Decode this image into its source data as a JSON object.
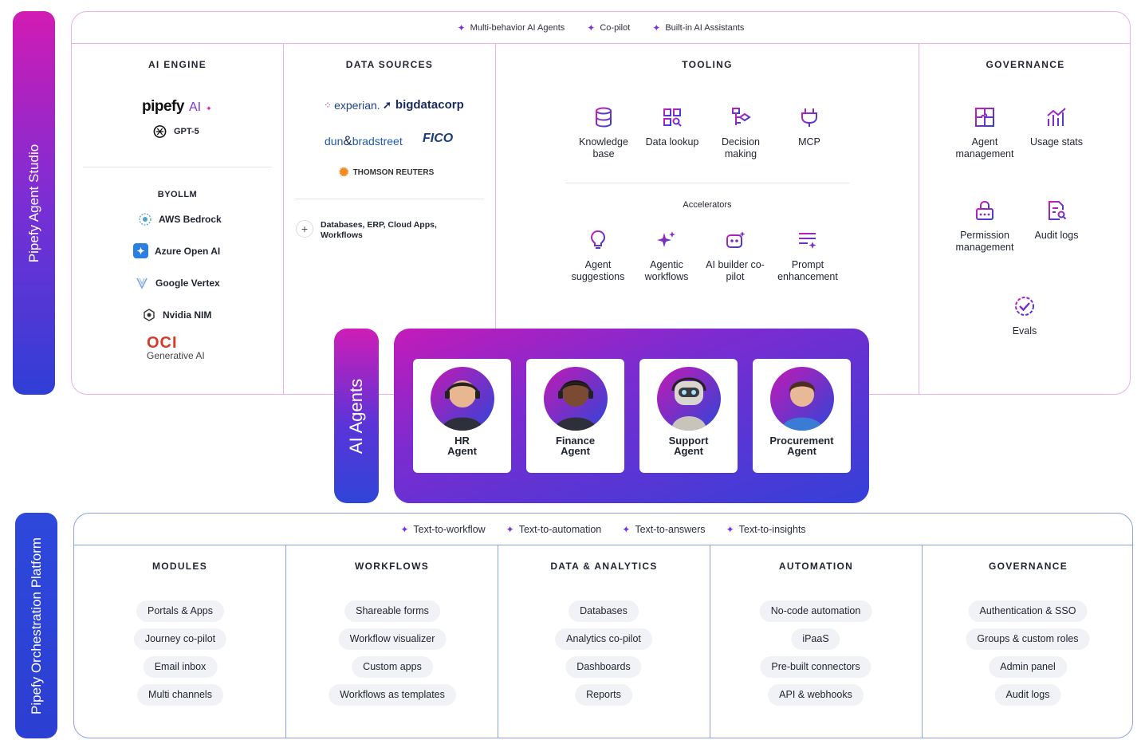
{
  "sidebars": {
    "studio": "Pipefy Agent Studio",
    "platform": "Pipefy Orchestration Platform"
  },
  "studio_top": [
    "Multi-behavior AI Agents",
    "Co-pilot",
    "Built-in AI Assistants"
  ],
  "ai_engine": {
    "title": "AI ENGINE",
    "pipefy_logo": "pipefy",
    "pipefy_ai": "AI",
    "gpt": "GPT-5",
    "byollm_title": "BYOLLM",
    "llms": [
      "AWS Bedrock",
      "Azure Open AI",
      "Google Vertex",
      "Nvidia NIM"
    ],
    "oci_logo": "OCI",
    "oci_sub": "Generative AI"
  },
  "data_sources": {
    "title": "DATA SOURCES",
    "logos": [
      "experian.",
      "bigdatacorp",
      "dun",
      "&",
      "bradstreet",
      "FICO",
      "THOMSON REUTERS"
    ],
    "extra": "Databases, ERP, Cloud Apps, Workflows"
  },
  "tooling": {
    "title": "TOOLING",
    "tools": [
      {
        "label": "Knowledge base",
        "icon": "database-icon"
      },
      {
        "label": "Data lookup",
        "icon": "grid-search-icon"
      },
      {
        "label": "Decision making",
        "icon": "flow-icon"
      },
      {
        "label": "MCP",
        "icon": "plug-icon"
      }
    ],
    "accel_title": "Accelerators",
    "accelerators": [
      {
        "label": "Agent suggestions",
        "icon": "lightbulb-icon"
      },
      {
        "label": "Agentic workflows",
        "icon": "sparkles-icon"
      },
      {
        "label": "AI builder co-pilot",
        "icon": "robot-icon"
      },
      {
        "label": "Prompt enhancement",
        "icon": "list-sparkle-icon"
      }
    ]
  },
  "governance_studio": {
    "title": "GOVERNANCE",
    "items": [
      {
        "label": "Agent management",
        "icon": "puzzle-icon"
      },
      {
        "label": "Usage stats",
        "icon": "chart-icon"
      },
      {
        "label": "Permission management",
        "icon": "lock-icon"
      },
      {
        "label": "Audit logs",
        "icon": "doc-search-icon"
      },
      {
        "label": "Evals",
        "icon": "check-circle-icon"
      }
    ]
  },
  "ai_agents": {
    "title": "AI Agents",
    "agents": [
      "HR\nAgent",
      "Finance\nAgent",
      "Support\nAgent",
      "Procurement\nAgent"
    ]
  },
  "platform_top": [
    "Text-to-workflow",
    "Text-to-automation",
    "Text-to-answers",
    "Text-to-insights"
  ],
  "platform_columns": [
    {
      "title": "MODULES",
      "items": [
        "Portals & Apps",
        "Journey co-pilot",
        "Email inbox",
        "Multi channels"
      ]
    },
    {
      "title": "WORKFLOWS",
      "items": [
        "Shareable forms",
        "Workflow visualizer",
        "Custom apps",
        "Workflows as templates"
      ]
    },
    {
      "title": "DATA & ANALYTICS",
      "items": [
        "Databases",
        "Analytics co-pilot",
        "Dashboards",
        "Reports"
      ]
    },
    {
      "title": "AUTOMATION",
      "items": [
        "No-code automation",
        "iPaaS",
        "Pre-built connectors",
        "API & webhooks"
      ]
    },
    {
      "title": "GOVERNANCE",
      "items": [
        "Authentication & SSO",
        "Groups & custom roles",
        "Admin panel",
        "Audit logs"
      ]
    }
  ],
  "colors": {
    "magenta": "#d21bb3",
    "blue": "#2f3fd6",
    "purple": "#7a35e0"
  }
}
